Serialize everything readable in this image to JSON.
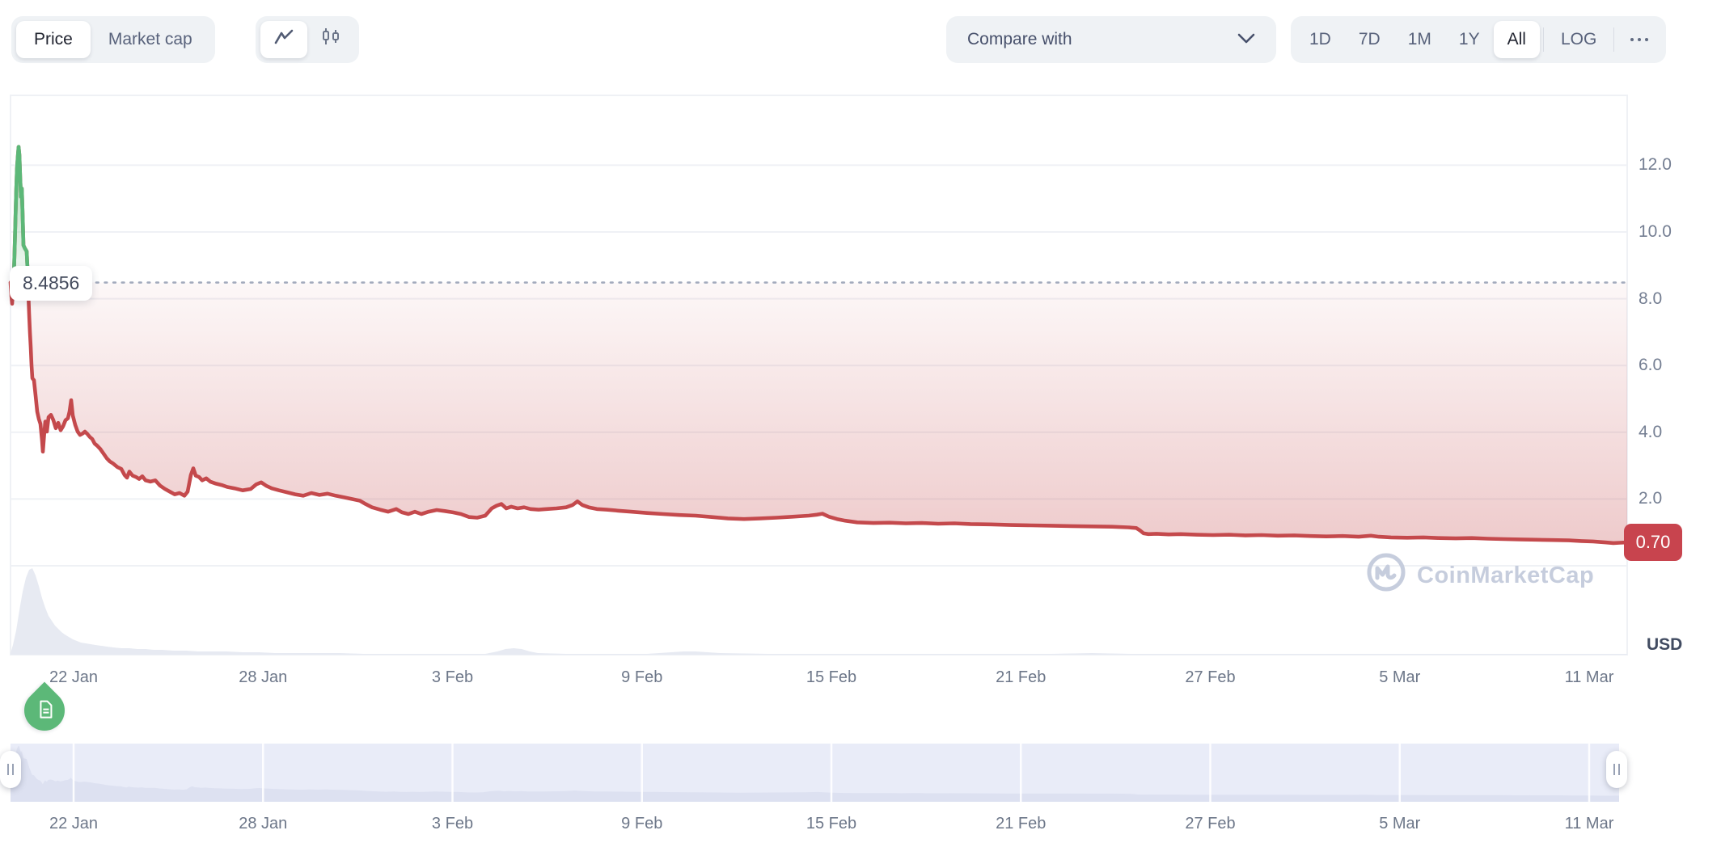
{
  "toolbar": {
    "metric_tabs": {
      "price": "Price",
      "market_cap": "Market cap"
    },
    "compare_with": {
      "label": "Compare with"
    },
    "ranges": {
      "d1": "1D",
      "d7": "7D",
      "m1": "1M",
      "y1": "1Y",
      "all": "All",
      "log": "LOG"
    }
  },
  "chart": {
    "baseline_price_label": "8.4856",
    "last_price_label": "0.70",
    "currency_label": "USD",
    "watermark_text": "CoinMarketCap"
  },
  "colors": {
    "line_red": "#c4494c",
    "line_green": "#5cb878",
    "badge_red": "#c8444e",
    "grid": "#eff1f5",
    "volume": "#e7eaf2",
    "brush_bg": "#e9ecf8",
    "brush_area": "#dde1f1",
    "dotted_baseline": "#a3abbd"
  },
  "chart_data": {
    "type": "line",
    "title": "Token price, all-time chart (CoinMarketCap)",
    "ylabel": "USD",
    "baseline_open_price": 8.4856,
    "last_price": 0.7,
    "ylim": [
      0,
      13.2
    ],
    "y_tick_values": [
      2.0,
      4.0,
      6.0,
      8.0,
      10.0,
      12.0
    ],
    "y_tick_labels": [
      "2.0",
      "4.0",
      "6.0",
      "8.0",
      "10.0",
      "12.0"
    ],
    "x_tick_labels": [
      "22 Jan",
      "28 Jan",
      "3 Feb",
      "9 Feb",
      "15 Feb",
      "21 Feb",
      "27 Feb",
      "5 Mar",
      "11 Mar"
    ],
    "legend": null,
    "grid": "horizontal-only",
    "series": [
      {
        "name": "price_usd",
        "note": "points are [x_px_within_plot, price_usd]; plot spans x 13..2012 = 20 Jan..11 Mar",
        "points": [
          [
            13,
            8.49
          ],
          [
            14,
            8.1
          ],
          [
            15,
            7.85
          ],
          [
            16,
            8.3
          ],
          [
            17,
            8.6
          ],
          [
            18,
            9.4
          ],
          [
            19,
            10.3
          ],
          [
            20,
            11.2
          ],
          [
            21,
            11.9
          ],
          [
            22,
            12.25
          ],
          [
            23,
            12.55
          ],
          [
            24,
            12.3
          ],
          [
            25,
            11.6
          ],
          [
            26,
            11.05
          ],
          [
            27,
            11.3
          ],
          [
            28,
            10.5
          ],
          [
            29,
            9.6
          ],
          [
            31,
            9.5
          ],
          [
            33,
            9.42
          ],
          [
            34,
            8.9
          ],
          [
            35,
            8.2
          ],
          [
            36,
            7.55
          ],
          [
            37,
            7.0
          ],
          [
            38,
            6.55
          ],
          [
            39,
            6.0
          ],
          [
            40,
            5.62
          ],
          [
            42,
            5.56
          ],
          [
            44,
            5.1
          ],
          [
            46,
            4.62
          ],
          [
            48,
            4.4
          ],
          [
            50,
            4.25
          ],
          [
            52,
            3.75
          ],
          [
            53,
            3.42
          ],
          [
            55,
            4.05
          ],
          [
            56,
            4.32
          ],
          [
            58,
            4.02
          ],
          [
            60,
            4.45
          ],
          [
            63,
            4.52
          ],
          [
            66,
            4.36
          ],
          [
            69,
            4.12
          ],
          [
            72,
            4.28
          ],
          [
            75,
            4.06
          ],
          [
            78,
            4.18
          ],
          [
            81,
            4.36
          ],
          [
            84,
            4.42
          ],
          [
            86,
            4.62
          ],
          [
            88,
            4.96
          ],
          [
            90,
            4.5
          ],
          [
            93,
            4.22
          ],
          [
            96,
            4.02
          ],
          [
            99,
            3.92
          ],
          [
            102,
            3.96
          ],
          [
            105,
            4.02
          ],
          [
            108,
            3.95
          ],
          [
            111,
            3.86
          ],
          [
            114,
            3.8
          ],
          [
            117,
            3.66
          ],
          [
            120,
            3.6
          ],
          [
            124,
            3.5
          ],
          [
            128,
            3.36
          ],
          [
            132,
            3.22
          ],
          [
            136,
            3.12
          ],
          [
            140,
            3.06
          ],
          [
            145,
            2.96
          ],
          [
            150,
            2.9
          ],
          [
            154,
            2.72
          ],
          [
            157,
            2.64
          ],
          [
            160,
            2.82
          ],
          [
            164,
            2.7
          ],
          [
            168,
            2.66
          ],
          [
            172,
            2.6
          ],
          [
            176,
            2.68
          ],
          [
            180,
            2.56
          ],
          [
            186,
            2.52
          ],
          [
            192,
            2.56
          ],
          [
            198,
            2.4
          ],
          [
            204,
            2.3
          ],
          [
            210,
            2.22
          ],
          [
            216,
            2.14
          ],
          [
            222,
            2.18
          ],
          [
            228,
            2.1
          ],
          [
            232,
            2.22
          ],
          [
            236,
            2.72
          ],
          [
            239,
            2.92
          ],
          [
            242,
            2.7
          ],
          [
            246,
            2.66
          ],
          [
            250,
            2.56
          ],
          [
            255,
            2.62
          ],
          [
            260,
            2.52
          ],
          [
            267,
            2.46
          ],
          [
            274,
            2.42
          ],
          [
            281,
            2.36
          ],
          [
            290,
            2.32
          ],
          [
            300,
            2.26
          ],
          [
            310,
            2.3
          ],
          [
            317,
            2.44
          ],
          [
            323,
            2.5
          ],
          [
            329,
            2.4
          ],
          [
            336,
            2.32
          ],
          [
            345,
            2.26
          ],
          [
            355,
            2.2
          ],
          [
            365,
            2.14
          ],
          [
            375,
            2.1
          ],
          [
            385,
            2.18
          ],
          [
            395,
            2.12
          ],
          [
            405,
            2.16
          ],
          [
            415,
            2.1
          ],
          [
            425,
            2.05
          ],
          [
            435,
            2.0
          ],
          [
            445,
            1.95
          ],
          [
            452,
            1.85
          ],
          [
            460,
            1.75
          ],
          [
            470,
            1.68
          ],
          [
            480,
            1.62
          ],
          [
            490,
            1.7
          ],
          [
            497,
            1.6
          ],
          [
            505,
            1.55
          ],
          [
            513,
            1.62
          ],
          [
            521,
            1.55
          ],
          [
            530,
            1.62
          ],
          [
            540,
            1.67
          ],
          [
            550,
            1.64
          ],
          [
            560,
            1.6
          ],
          [
            570,
            1.55
          ],
          [
            580,
            1.46
          ],
          [
            590,
            1.44
          ],
          [
            600,
            1.5
          ],
          [
            608,
            1.72
          ],
          [
            614,
            1.8
          ],
          [
            620,
            1.85
          ],
          [
            626,
            1.72
          ],
          [
            632,
            1.77
          ],
          [
            640,
            1.72
          ],
          [
            648,
            1.75
          ],
          [
            656,
            1.7
          ],
          [
            666,
            1.68
          ],
          [
            676,
            1.7
          ],
          [
            688,
            1.72
          ],
          [
            700,
            1.75
          ],
          [
            708,
            1.82
          ],
          [
            714,
            1.93
          ],
          [
            720,
            1.82
          ],
          [
            728,
            1.75
          ],
          [
            738,
            1.7
          ],
          [
            750,
            1.68
          ],
          [
            765,
            1.65
          ],
          [
            780,
            1.62
          ],
          [
            800,
            1.58
          ],
          [
            820,
            1.55
          ],
          [
            840,
            1.52
          ],
          [
            860,
            1.5
          ],
          [
            880,
            1.46
          ],
          [
            900,
            1.42
          ],
          [
            920,
            1.4
          ],
          [
            940,
            1.42
          ],
          [
            960,
            1.44
          ],
          [
            980,
            1.47
          ],
          [
            1000,
            1.5
          ],
          [
            1010,
            1.53
          ],
          [
            1017,
            1.56
          ],
          [
            1025,
            1.47
          ],
          [
            1035,
            1.4
          ],
          [
            1045,
            1.35
          ],
          [
            1060,
            1.3
          ],
          [
            1080,
            1.28
          ],
          [
            1100,
            1.29
          ],
          [
            1120,
            1.27
          ],
          [
            1140,
            1.28
          ],
          [
            1160,
            1.26
          ],
          [
            1180,
            1.27
          ],
          [
            1200,
            1.25
          ],
          [
            1225,
            1.24
          ],
          [
            1250,
            1.22
          ],
          [
            1275,
            1.21
          ],
          [
            1300,
            1.2
          ],
          [
            1325,
            1.19
          ],
          [
            1350,
            1.18
          ],
          [
            1375,
            1.17
          ],
          [
            1395,
            1.15
          ],
          [
            1405,
            1.13
          ],
          [
            1410,
            1.05
          ],
          [
            1414,
            0.97
          ],
          [
            1420,
            0.95
          ],
          [
            1430,
            0.96
          ],
          [
            1445,
            0.94
          ],
          [
            1460,
            0.95
          ],
          [
            1480,
            0.93
          ],
          [
            1500,
            0.92
          ],
          [
            1520,
            0.93
          ],
          [
            1540,
            0.91
          ],
          [
            1560,
            0.92
          ],
          [
            1580,
            0.9
          ],
          [
            1600,
            0.91
          ],
          [
            1620,
            0.89
          ],
          [
            1640,
            0.88
          ],
          [
            1660,
            0.89
          ],
          [
            1680,
            0.87
          ],
          [
            1695,
            0.9
          ],
          [
            1705,
            0.87
          ],
          [
            1720,
            0.85
          ],
          [
            1740,
            0.84
          ],
          [
            1760,
            0.85
          ],
          [
            1780,
            0.83
          ],
          [
            1800,
            0.82
          ],
          [
            1820,
            0.83
          ],
          [
            1840,
            0.81
          ],
          [
            1860,
            0.8
          ],
          [
            1880,
            0.79
          ],
          [
            1900,
            0.78
          ],
          [
            1920,
            0.77
          ],
          [
            1940,
            0.76
          ],
          [
            1955,
            0.74
          ],
          [
            1970,
            0.73
          ],
          [
            1985,
            0.7
          ],
          [
            1995,
            0.68
          ],
          [
            2003,
            0.69
          ],
          [
            2012,
            0.7
          ]
        ]
      }
    ],
    "volume_profile": {
      "note": "[x_px, bar_height_px] relative volume silhouette at bottom of plot",
      "points": [
        [
          13,
          2
        ],
        [
          16,
          12
        ],
        [
          20,
          30
        ],
        [
          24,
          55
        ],
        [
          28,
          78
        ],
        [
          32,
          95
        ],
        [
          36,
          105
        ],
        [
          40,
          107
        ],
        [
          44,
          98
        ],
        [
          48,
          85
        ],
        [
          52,
          70
        ],
        [
          56,
          58
        ],
        [
          60,
          48
        ],
        [
          64,
          42
        ],
        [
          68,
          36
        ],
        [
          72,
          32
        ],
        [
          76,
          28
        ],
        [
          80,
          25
        ],
        [
          85,
          22
        ],
        [
          90,
          19
        ],
        [
          95,
          17
        ],
        [
          100,
          15
        ],
        [
          106,
          14
        ],
        [
          112,
          13
        ],
        [
          118,
          12
        ],
        [
          125,
          11
        ],
        [
          132,
          10
        ],
        [
          140,
          9
        ],
        [
          150,
          8
        ],
        [
          160,
          8
        ],
        [
          170,
          7
        ],
        [
          180,
          7
        ],
        [
          190,
          6
        ],
        [
          200,
          6
        ],
        [
          215,
          5
        ],
        [
          230,
          5
        ],
        [
          245,
          4
        ],
        [
          260,
          4
        ],
        [
          280,
          4
        ],
        [
          300,
          3
        ],
        [
          320,
          3
        ],
        [
          340,
          2
        ],
        [
          360,
          2
        ],
        [
          390,
          2
        ],
        [
          420,
          2
        ],
        [
          450,
          1
        ],
        [
          500,
          1
        ],
        [
          550,
          1
        ],
        [
          600,
          1
        ],
        [
          615,
          4
        ],
        [
          625,
          7
        ],
        [
          635,
          8
        ],
        [
          645,
          7
        ],
        [
          655,
          4
        ],
        [
          665,
          2
        ],
        [
          700,
          1
        ],
        [
          750,
          1
        ],
        [
          800,
          1
        ],
        [
          830,
          3
        ],
        [
          845,
          4
        ],
        [
          860,
          4
        ],
        [
          875,
          3
        ],
        [
          890,
          2
        ],
        [
          950,
          1
        ],
        [
          1000,
          1
        ],
        [
          1100,
          1
        ],
        [
          1200,
          1
        ],
        [
          1300,
          1
        ],
        [
          1350,
          2
        ],
        [
          1400,
          1
        ],
        [
          1500,
          1
        ],
        [
          1600,
          1
        ],
        [
          1700,
          1
        ],
        [
          1800,
          1
        ],
        [
          1900,
          1
        ],
        [
          2012,
          1
        ]
      ]
    }
  }
}
